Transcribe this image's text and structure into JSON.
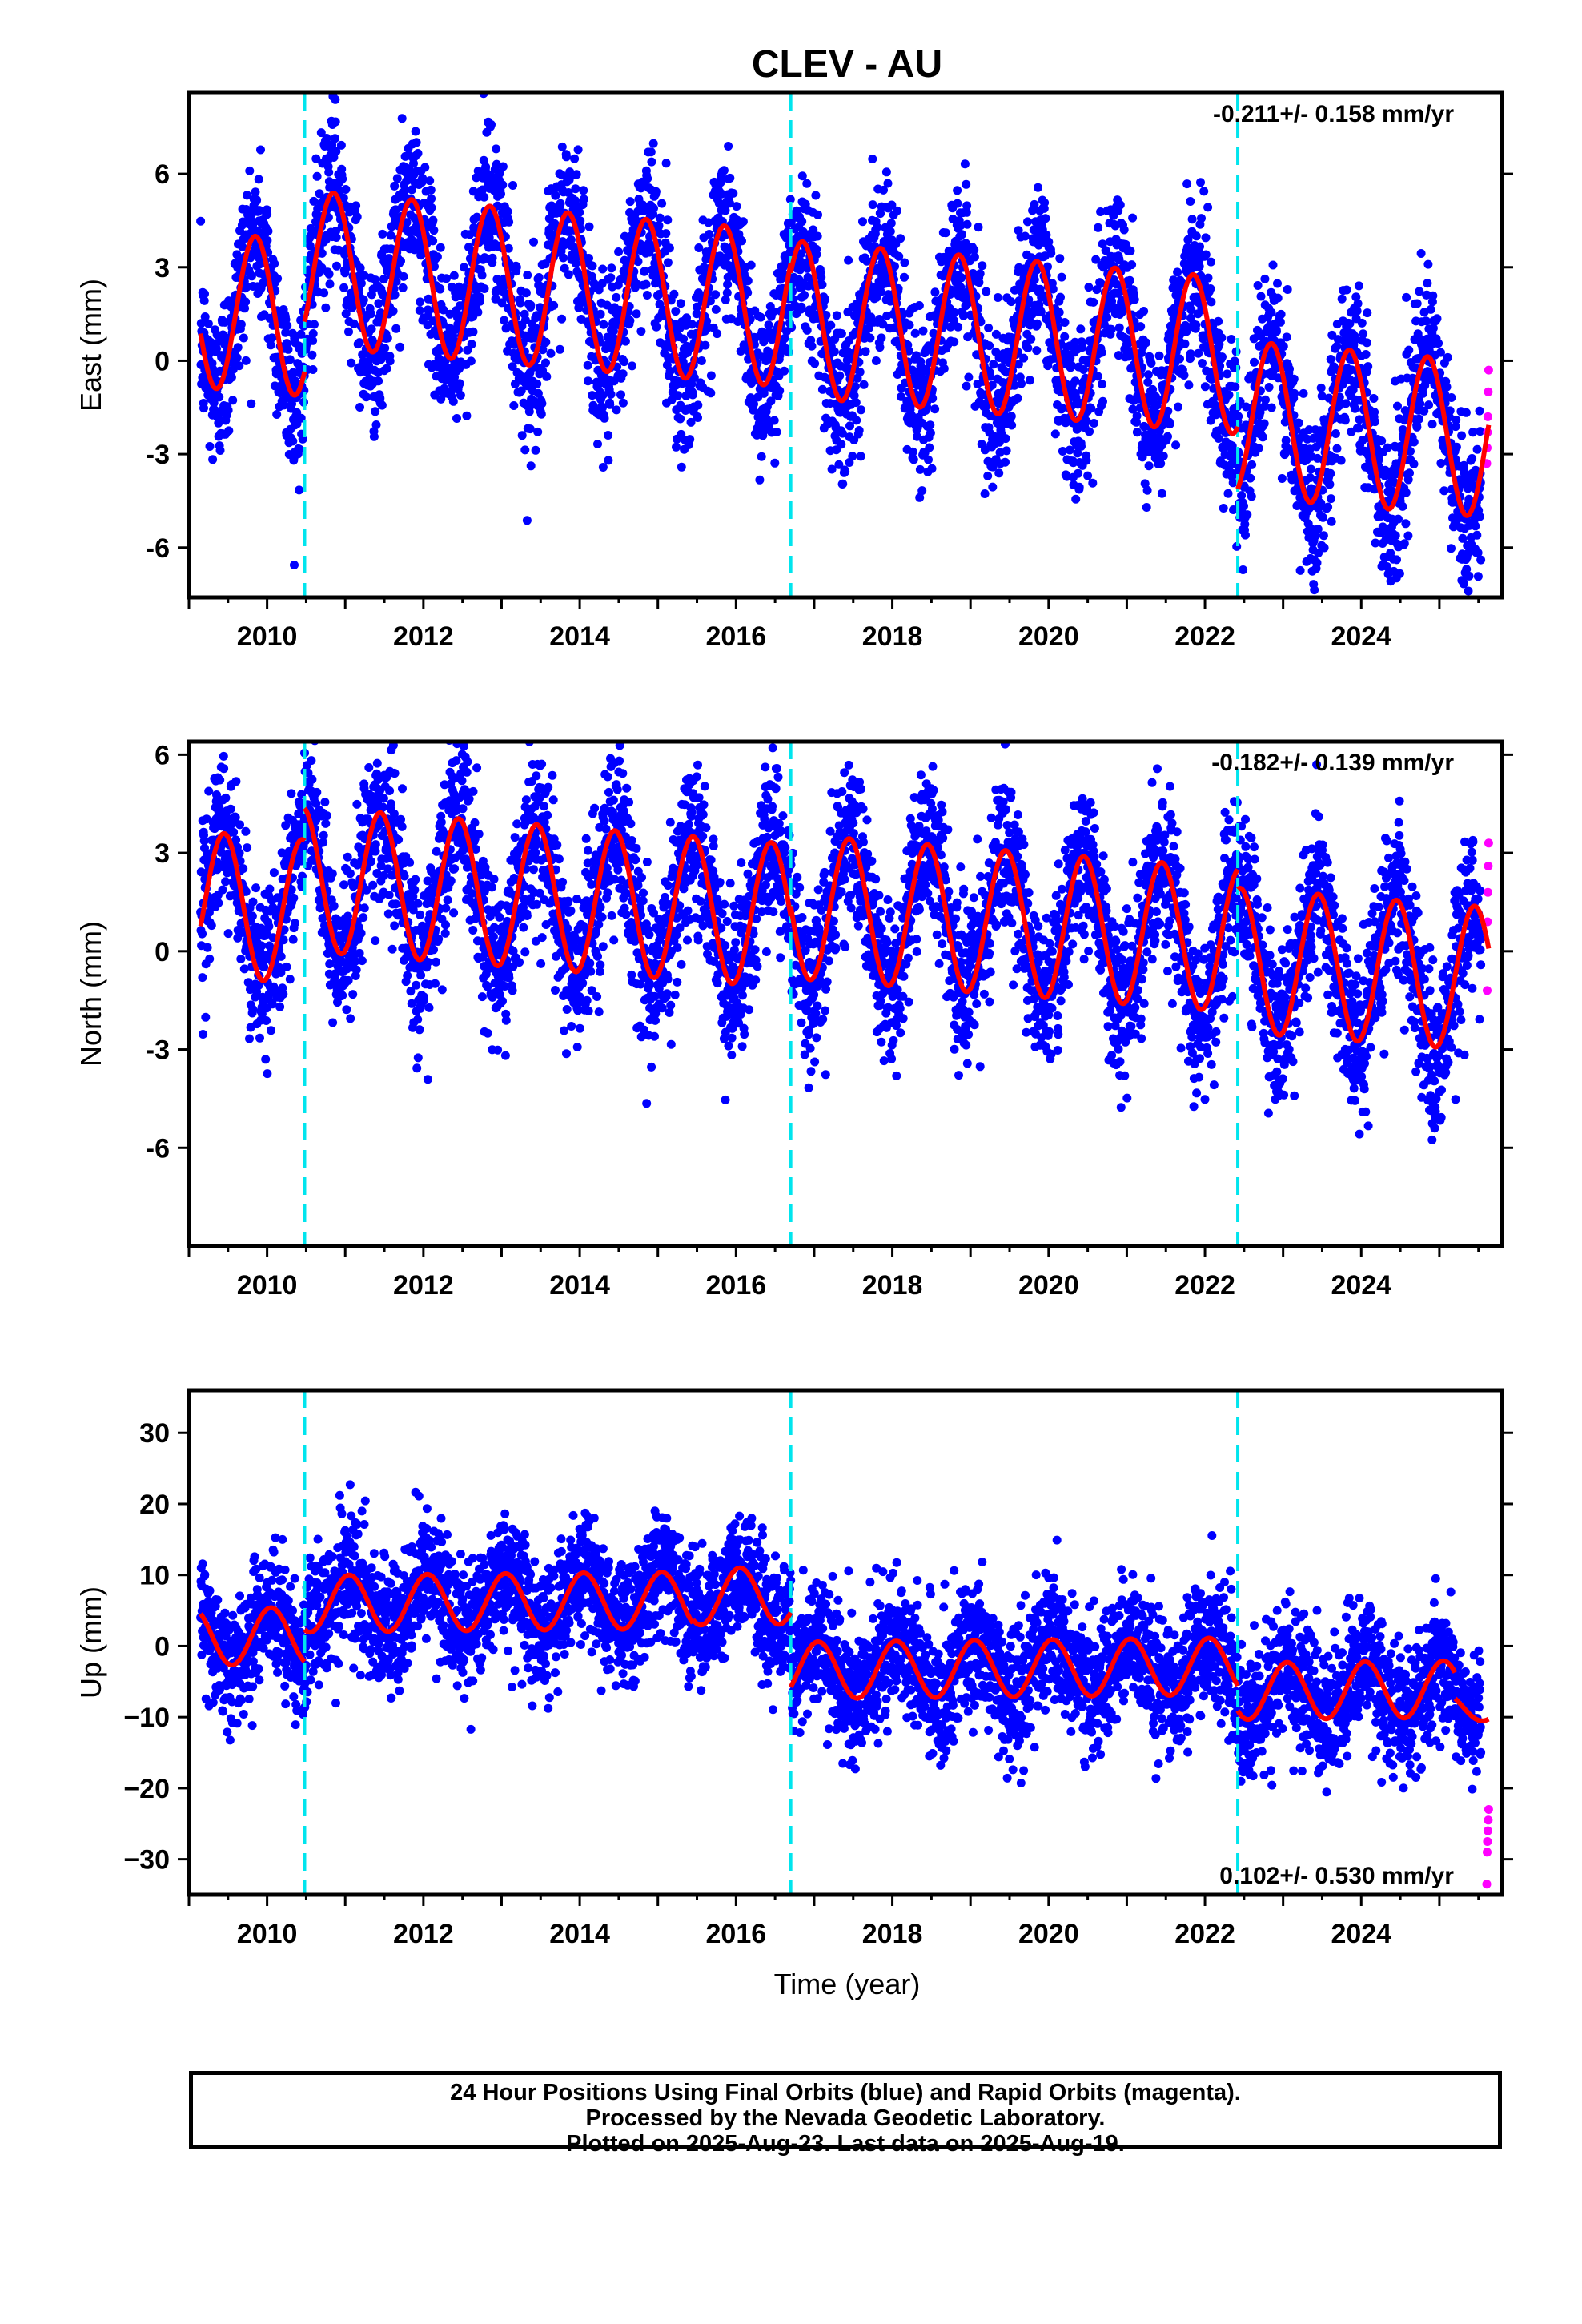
{
  "chart_data": {
    "type": "scatter",
    "title": "CLEV - AU",
    "xlabel": "Time (year)",
    "x_tick_labels": [
      "2010",
      "2012",
      "2014",
      "2016",
      "2018",
      "2020",
      "2022",
      "2024"
    ],
    "xlim": [
      2009.0,
      2025.8
    ],
    "grid": false,
    "colors": {
      "final_orbits": "#0000ff",
      "rapid_orbits": "#ff00ff",
      "model": "#ff0000",
      "steps": "#00e5ee"
    },
    "steps_years": [
      2010.48,
      2016.7,
      2022.42
    ],
    "first_data_year": 2009.15,
    "last_data_year": 2025.63,
    "panels": [
      {
        "name": "east",
        "ylabel": "East (mm)",
        "ylim": [
          -7.6,
          8.6
        ],
        "y_ticks": [
          6,
          3,
          0,
          -3,
          -6
        ],
        "y_tick_labels": [
          "6",
          "3",
          "0",
          "-3",
          "-6"
        ],
        "rate_label": "-0.211+/- 0.158 mm/yr",
        "rate_position": "top-right",
        "model_segments": [
          {
            "start": 2009.15,
            "end": 2010.48,
            "offset": 0.2,
            "trend": -0.211,
            "amplitude": 2.5,
            "peak": 0.85
          },
          {
            "start": 2010.48,
            "end": 2016.7,
            "offset": 1.8,
            "trend": -0.211,
            "amplitude": 2.5,
            "peak": 0.85
          },
          {
            "start": 2016.7,
            "end": 2022.42,
            "offset": 1.5,
            "trend": -0.211,
            "amplitude": 2.5,
            "peak": 0.85
          },
          {
            "start": 2022.42,
            "end": 2025.63,
            "offset": -0.5,
            "trend": -0.211,
            "amplitude": 2.5,
            "peak": 0.85
          }
        ],
        "scatter_sd": 1.3,
        "rapid_values": [
          -0.3,
          -1.0,
          -1.8,
          -2.3,
          -2.8,
          -3.3
        ]
      },
      {
        "name": "north",
        "ylabel": "North (mm)",
        "ylim": [
          -9.0,
          6.4
        ],
        "y_ticks": [
          6,
          3,
          0,
          -3,
          -6
        ],
        "y_tick_labels": [
          "6",
          "3",
          "0",
          "-3",
          "-6"
        ],
        "rate_label": "-0.182+/- 0.139 mm/yr",
        "rate_position": "top-right",
        "model_segments": [
          {
            "start": 2009.15,
            "end": 2010.48,
            "offset": 0.2,
            "trend": -0.182,
            "amplitude": 2.2,
            "peak": 0.45
          },
          {
            "start": 2010.48,
            "end": 2016.7,
            "offset": 1.2,
            "trend": -0.182,
            "amplitude": 2.2,
            "peak": 0.45
          },
          {
            "start": 2016.7,
            "end": 2022.42,
            "offset": 1.5,
            "trend": -0.182,
            "amplitude": 2.2,
            "peak": 0.45
          },
          {
            "start": 2022.42,
            "end": 2025.63,
            "offset": 0.9,
            "trend": -0.182,
            "amplitude": 2.2,
            "peak": 0.45
          }
        ],
        "scatter_sd": 1.2,
        "rapid_values": [
          3.3,
          2.6,
          1.8,
          0.9,
          -1.2
        ]
      },
      {
        "name": "up",
        "ylabel": "Up (mm)",
        "ylim": [
          -35,
          36
        ],
        "y_ticks": [
          30,
          20,
          10,
          0,
          -10,
          -20,
          -30
        ],
        "y_tick_labels": [
          "30",
          "20",
          "10",
          "0",
          "−10",
          "−20",
          "−30"
        ],
        "rate_label": "0.102+/- 0.530 mm/yr",
        "rate_position": "bottom-right",
        "model_segments": [
          {
            "start": 2009.15,
            "end": 2010.48,
            "offset": 2.0,
            "trend": 0.102,
            "amplitude": 4.0,
            "peak": 0.05
          },
          {
            "start": 2010.48,
            "end": 2015.45,
            "offset": 6.5,
            "trend": 0.102,
            "amplitude": 4.0,
            "peak": 0.05
          },
          {
            "start": 2015.45,
            "end": 2016.7,
            "offset": 7.0,
            "trend": 0.102,
            "amplitude": 4.0,
            "peak": 0.05
          },
          {
            "start": 2016.7,
            "end": 2022.42,
            "offset": -3.5,
            "trend": 0.102,
            "amplitude": 4.0,
            "peak": 0.05
          },
          {
            "start": 2022.42,
            "end": 2025.2,
            "offset": -7.0,
            "trend": 0.102,
            "amplitude": 4.0,
            "peak": 0.05
          },
          {
            "start": 2025.2,
            "end": 2025.63,
            "offset": -9.5,
            "trend": 0.102,
            "amplitude": 2.0,
            "peak": 0.05
          }
        ],
        "scatter_sd": 4.5,
        "rapid_values": [
          -23,
          -24.5,
          -26,
          -27.5,
          -29,
          -33.5
        ]
      }
    ]
  },
  "footer": {
    "line1": "24 Hour Positions Using Final Orbits (blue) and Rapid Orbits (magenta).",
    "line2": "Processed by the Nevada Geodetic Laboratory.",
    "line3": "Plotted on 2025-Aug-23. Last data on 2025-Aug-19."
  }
}
